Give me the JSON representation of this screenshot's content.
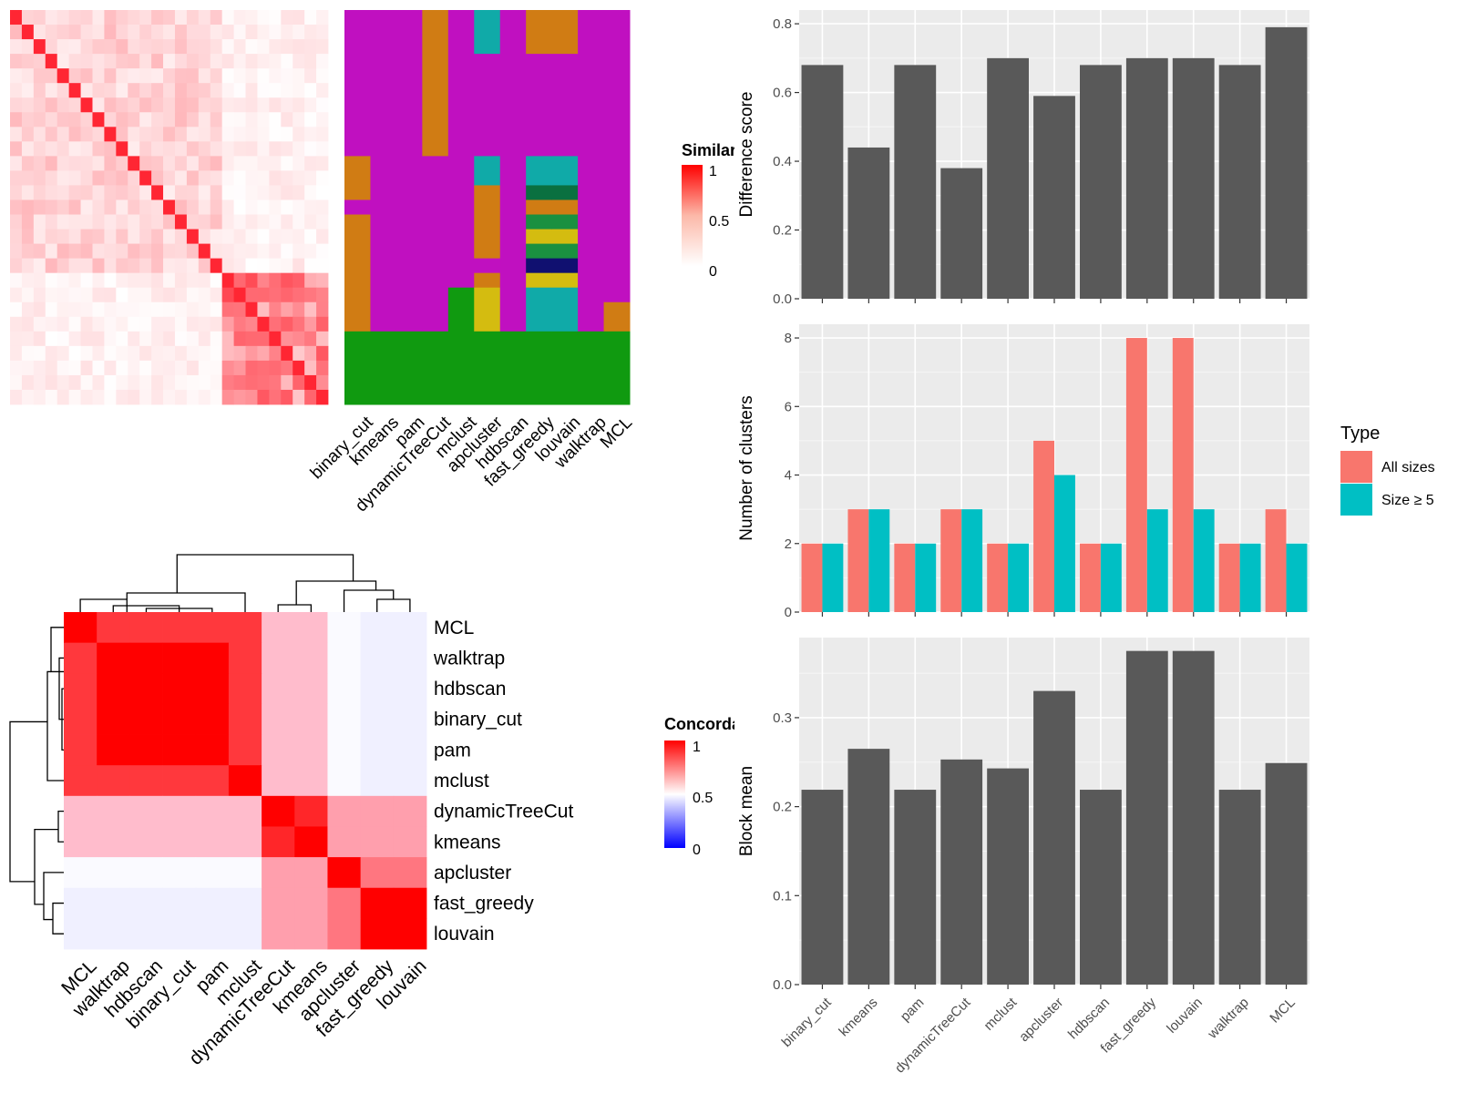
{
  "colors": {
    "accent_red": "#ff0000",
    "panel_bg": "#ebebeb",
    "bar_dark": "#595959",
    "all_sizes": "#f8766d",
    "size_ge5": "#00bfc4",
    "class_magenta": "#c010c0",
    "class_green": "#109a10",
    "class_orange": "#d07c14",
    "class_teal": "#10aaa8",
    "class_yellow": "#d4bc10",
    "class_darkgreen": "#0a7040",
    "class_midgreen": "#1a9040",
    "class_navy": "#101070"
  },
  "similarity_heatmap": {
    "legend_title": "Similarity",
    "legend_ticks": [
      "1",
      "0.5",
      "0"
    ],
    "n": 27,
    "clusters": [
      [
        0,
        17
      ],
      [
        18,
        27
      ]
    ]
  },
  "class_matrix": {
    "methods": [
      "binary_cut",
      "kmeans",
      "pam",
      "dynamicTreeCut",
      "mclust",
      "apcluster",
      "hdbscan",
      "fast_greedy",
      "louvain",
      "walktrap",
      "MCL"
    ]
  },
  "concordance_heatmap": {
    "legend_title": "Concordance",
    "legend_ticks": [
      "1",
      "0.5",
      "0"
    ],
    "row_labels": [
      "MCL",
      "walktrap",
      "hdbscan",
      "binary_cut",
      "pam",
      "mclust",
      "dynamicTreeCut",
      "kmeans",
      "apcluster",
      "fast_greedy",
      "louvain"
    ],
    "col_labels": [
      "MCL",
      "walktrap",
      "hdbscan",
      "binary_cut",
      "pam",
      "mclust",
      "dynamicTreeCut",
      "kmeans",
      "apcluster",
      "fast_greedy",
      "louvain"
    ]
  },
  "chart_data": [
    {
      "type": "bar",
      "categories": [
        "binary_cut",
        "kmeans",
        "pam",
        "dynamicTreeCut",
        "mclust",
        "apcluster",
        "hdbscan",
        "fast_greedy",
        "louvain",
        "walktrap",
        "MCL"
      ],
      "values": [
        0.68,
        0.44,
        0.68,
        0.38,
        0.7,
        0.59,
        0.68,
        0.7,
        0.7,
        0.68,
        0.79
      ],
      "ylabel": "Difference score",
      "ylim": [
        0,
        0.84
      ],
      "yticks": [
        "0.0",
        "0.2",
        "0.4",
        "0.6",
        "0.8"
      ],
      "grid": true
    },
    {
      "type": "bar",
      "categories": [
        "binary_cut",
        "kmeans",
        "pam",
        "dynamicTreeCut",
        "mclust",
        "apcluster",
        "hdbscan",
        "fast_greedy",
        "louvain",
        "walktrap",
        "MCL"
      ],
      "series": [
        {
          "name": "All sizes",
          "values": [
            2,
            3,
            2,
            3,
            2,
            5,
            2,
            8,
            8,
            2,
            3
          ]
        },
        {
          "name": "Size ≥ 5",
          "values": [
            2,
            3,
            2,
            3,
            2,
            4,
            2,
            3,
            3,
            2,
            2
          ]
        }
      ],
      "ylabel": "Number of clusters",
      "ylim": [
        0,
        8.4
      ],
      "yticks": [
        "0",
        "2",
        "4",
        "6",
        "8"
      ],
      "legend_title": "Type",
      "legend_position": "right",
      "grid": true
    },
    {
      "type": "bar",
      "categories": [
        "binary_cut",
        "kmeans",
        "pam",
        "dynamicTreeCut",
        "mclust",
        "apcluster",
        "hdbscan",
        "fast_greedy",
        "louvain",
        "walktrap",
        "MCL"
      ],
      "values": [
        0.219,
        0.265,
        0.219,
        0.253,
        0.243,
        0.33,
        0.219,
        0.375,
        0.375,
        0.219,
        0.249
      ],
      "ylabel": "Block mean",
      "ylim": [
        0,
        0.39
      ],
      "yticks": [
        "0.0",
        "0.1",
        "0.2",
        "0.3"
      ],
      "grid": true
    }
  ]
}
